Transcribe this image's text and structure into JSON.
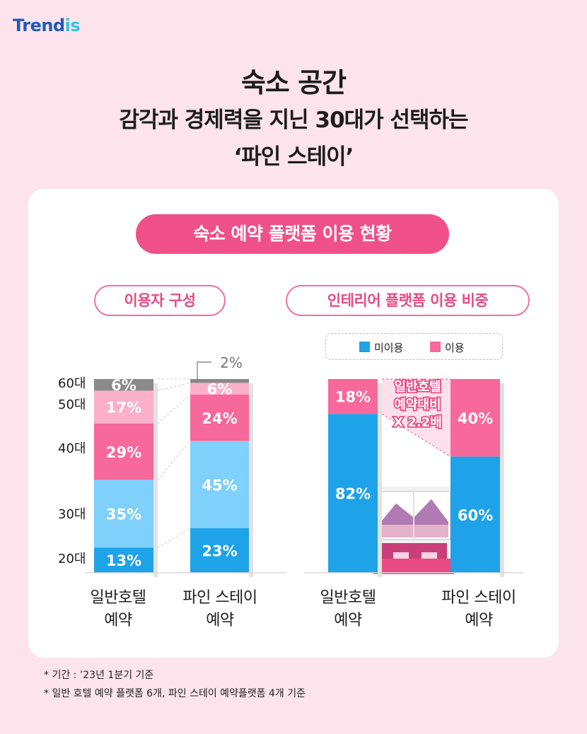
{
  "brand": {
    "logo_main": "Trend",
    "logo_tail": "is"
  },
  "title": {
    "line1": "숙소 공간",
    "line2": "감각과 경제력을 지닌 30대가 선택하는",
    "line3": "‘파인 스테이’"
  },
  "main_label": "숙소 예약 플랫폼 이용 현황",
  "left_panel": {
    "label": "이용자 구성"
  },
  "right_panel": {
    "label": "인테리어 플랫폼 이용 비중"
  },
  "legend": [
    {
      "name": "미이용",
      "color": "#1ea3e8"
    },
    {
      "name": "이용",
      "color": "#f7689b"
    }
  ],
  "categories": [
    {
      "line1": "일반호텔",
      "line2": "예약"
    },
    {
      "line1": "파인 스테이",
      "line2": "예약"
    }
  ],
  "callout": {
    "line1": "일반호텔",
    "line2": "예약대비",
    "line3": "X 2.2배"
  },
  "footnotes": [
    "* 기간 : ’23년 1분기 기준",
    "* 일반 호텔 예약 플랫폼 6개, 파인 스테이 예약플랫폼 4개 기준"
  ],
  "chart_data": [
    {
      "type": "bar",
      "stacked": true,
      "title": "이용자 구성",
      "categories": [
        "일반호텔 예약",
        "파인 스테이 예약"
      ],
      "age_groups": [
        "20대",
        "30대",
        "40대",
        "50대",
        "60대"
      ],
      "series": [
        {
          "name": "20대",
          "values": [
            13,
            23
          ],
          "labels": [
            "13%",
            "23%"
          ],
          "color": "#1ea3e8"
        },
        {
          "name": "30대",
          "values": [
            35,
            45
          ],
          "labels": [
            "35%",
            "45%"
          ],
          "color": "#7fd0fa"
        },
        {
          "name": "40대",
          "values": [
            29,
            24
          ],
          "labels": [
            "29%",
            "24%"
          ],
          "color": "#f7689b"
        },
        {
          "name": "50대",
          "values": [
            17,
            6
          ],
          "labels": [
            "17%",
            "6%"
          ],
          "color": "#fcb0c9"
        },
        {
          "name": "60대",
          "values": [
            6,
            2
          ],
          "labels": [
            "6%",
            "2%"
          ],
          "color": "#8a8a8a"
        }
      ]
    },
    {
      "type": "bar",
      "stacked": true,
      "title": "인테리어 플랫폼 이용 비중",
      "categories": [
        "일반호텔 예약",
        "파인 스테이 예약"
      ],
      "series": [
        {
          "name": "미이용",
          "values": [
            82,
            60
          ],
          "labels": [
            "82%",
            "60%"
          ],
          "color": "#1ea3e8"
        },
        {
          "name": "이용",
          "values": [
            18,
            40
          ],
          "labels": [
            "18%",
            "40%"
          ],
          "color": "#f7689b"
        }
      ]
    }
  ]
}
